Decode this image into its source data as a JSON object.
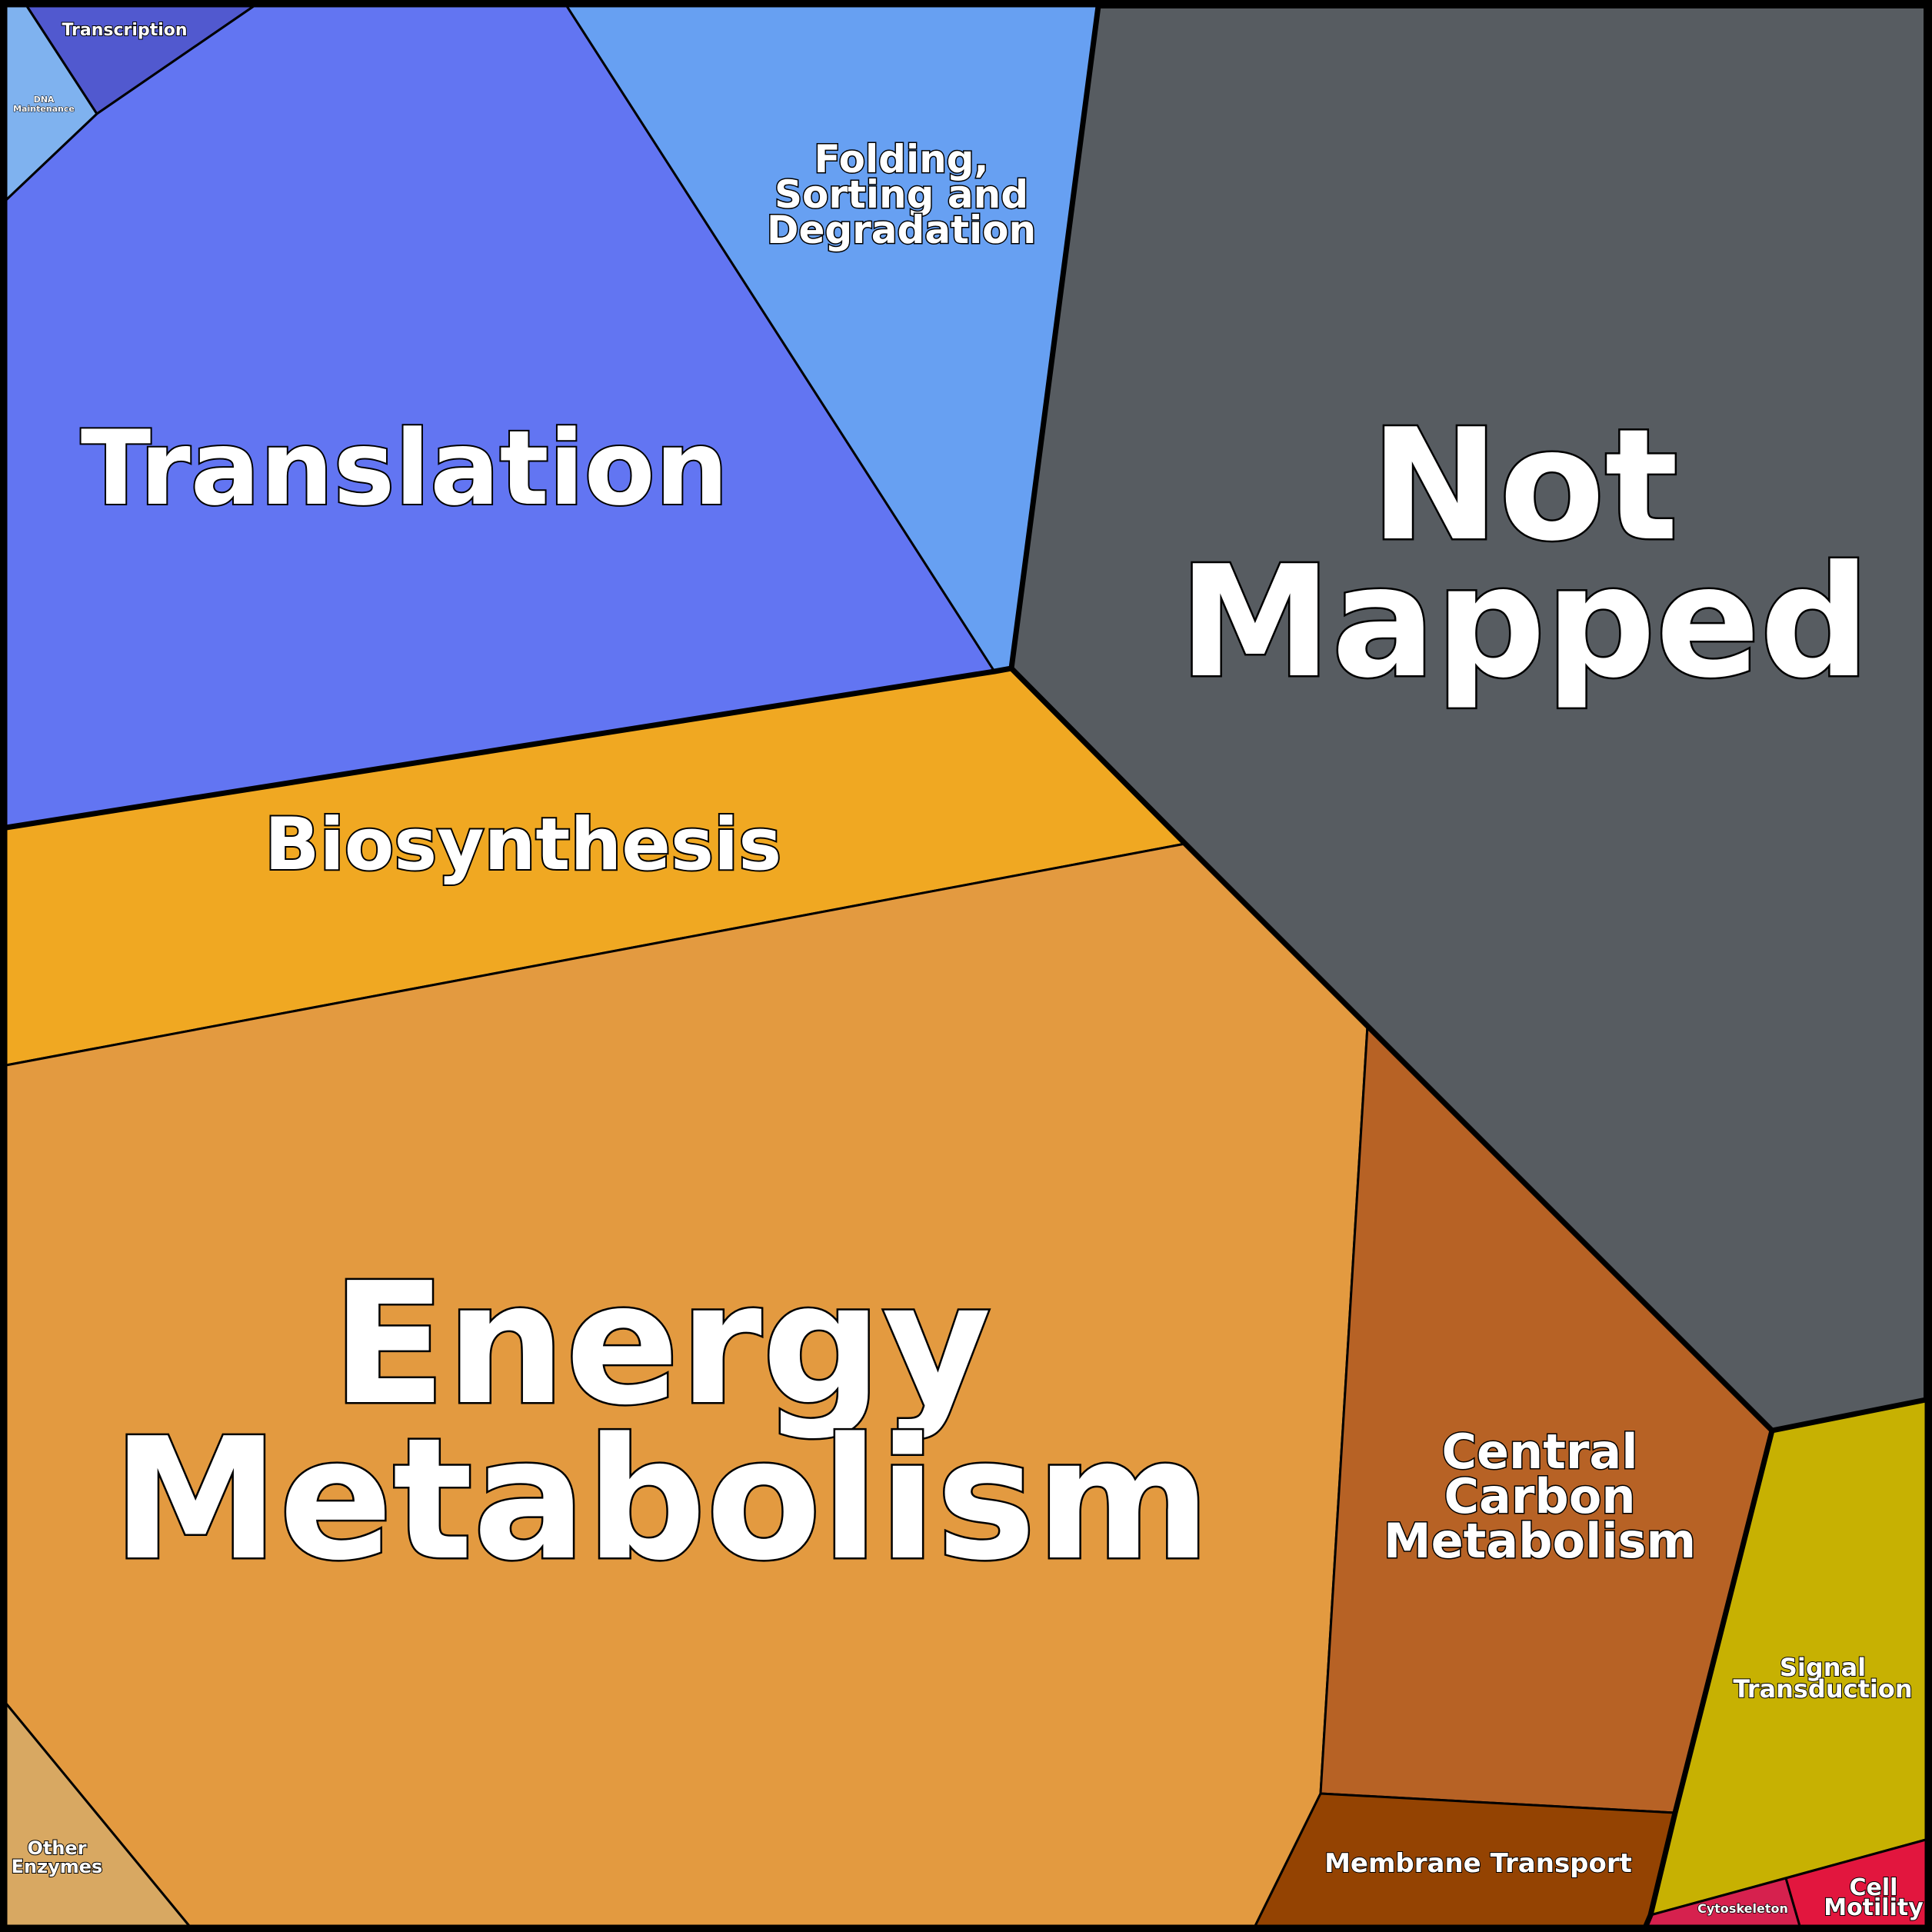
{
  "cells": {
    "dna_maintenance": {
      "label": [
        "DNA",
        "Maintenance"
      ],
      "color": "#7fb2ef"
    },
    "transcription": {
      "label": [
        "Transcription"
      ],
      "color": "#5159cf"
    },
    "translation": {
      "label": [
        "Translation"
      ],
      "color": "#6275f2"
    },
    "folding": {
      "label": [
        "Folding,",
        "Sorting and",
        "Degradation"
      ],
      "color": "#67a0f2"
    },
    "not_mapped": {
      "label": [
        "Not",
        "Mapped"
      ],
      "color": "#575c61"
    },
    "biosynthesis": {
      "label": [
        "Biosynthesis"
      ],
      "color": "#f0a822"
    },
    "energy": {
      "label": [
        "Energy",
        "Metabolism"
      ],
      "color": "#e39a40"
    },
    "central_carbon": {
      "label": [
        "Central",
        "Carbon",
        "Metabolism"
      ],
      "color": "#b76225"
    },
    "signal": {
      "label": [
        "Signal",
        "Transduction"
      ],
      "color": "#c7b102"
    },
    "membrane": {
      "label": [
        "Membrane Transport"
      ],
      "color": "#944302"
    },
    "other_enzymes": {
      "label": [
        "Other",
        "Enzymes"
      ],
      "color": "#d8a862"
    },
    "cytoskeleton": {
      "label": [
        "Cytoskeleton"
      ],
      "color": "#d6214e"
    },
    "cell_motility": {
      "label": [
        "Cell",
        "Motility"
      ],
      "color": "#e2163e"
    }
  }
}
